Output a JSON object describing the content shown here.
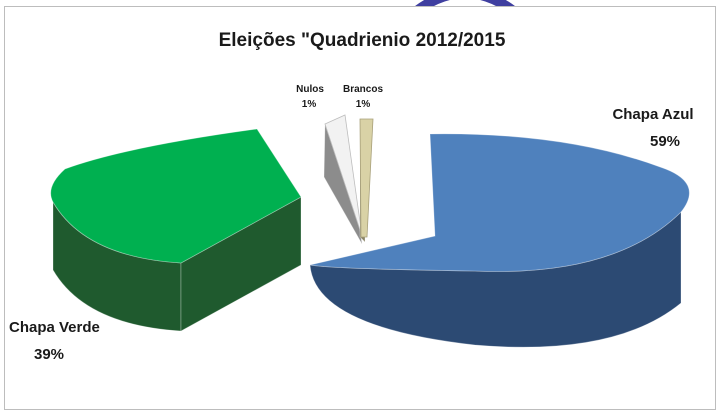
{
  "chart_data": {
    "type": "pie",
    "title": "Eleições \"Quadrienio 2012/2015",
    "slices": [
      {
        "label": "Chapa Azul",
        "value": 59,
        "display": "59%",
        "color": "#4f81bd",
        "side_color": "#2c4a73"
      },
      {
        "label": "Chapa Verde",
        "value": 39,
        "display": "39%",
        "color": "#00b050",
        "side_color": "#1f5a2e"
      },
      {
        "label": "Nulos",
        "value": 1,
        "display": "1%",
        "color": "#f2f2f2",
        "side_color": "#8c8c8c"
      },
      {
        "label": "Brancos",
        "value": 1,
        "display": "1%",
        "color": "#d9d2a6",
        "side_color": "#8a8466"
      }
    ],
    "style": "3d-exploded"
  }
}
